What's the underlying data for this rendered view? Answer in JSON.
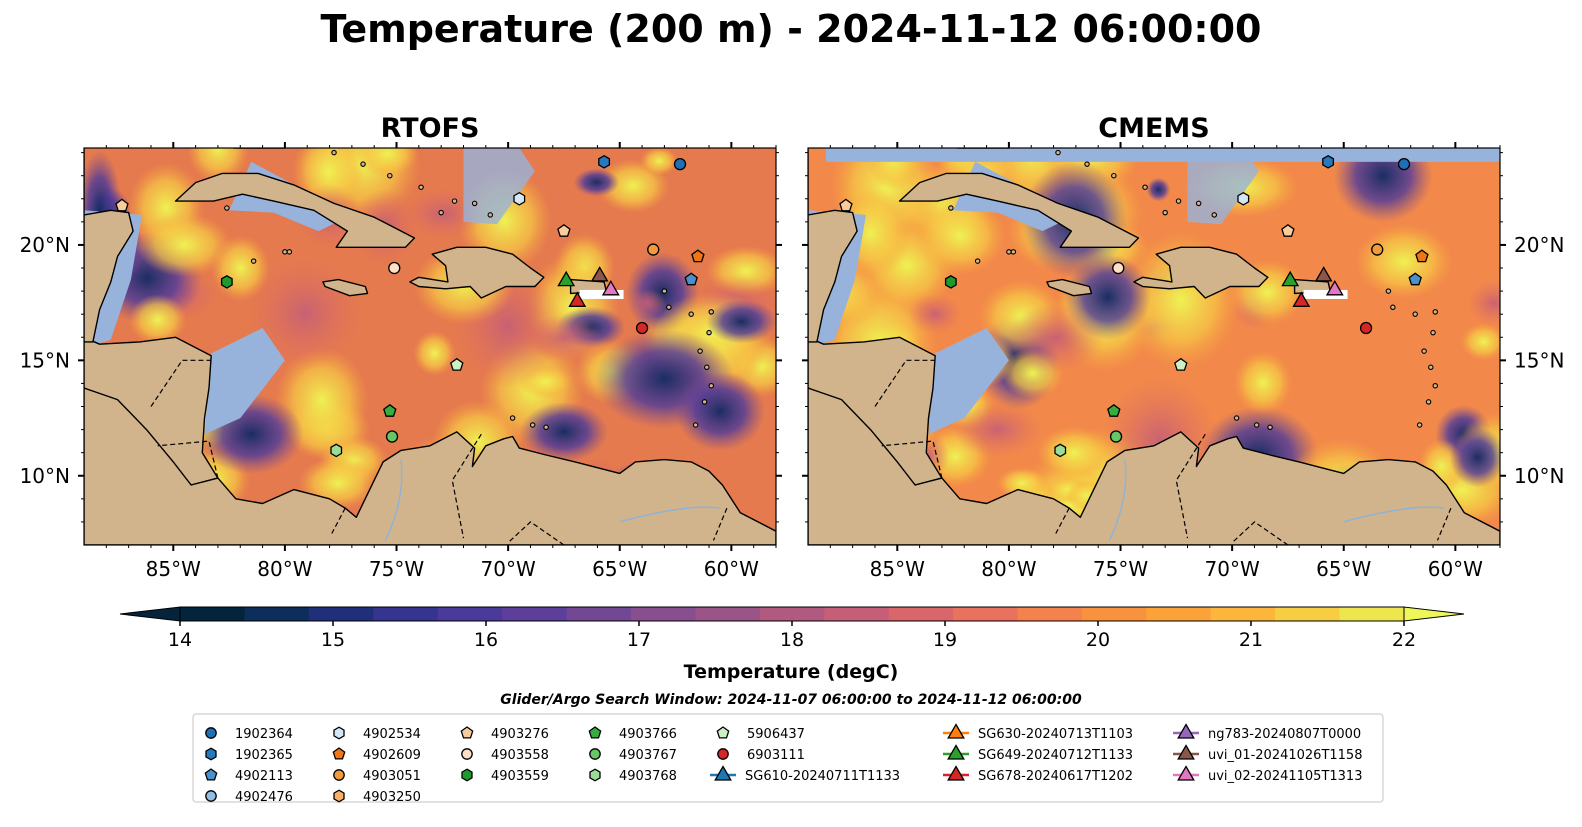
{
  "title": "Temperature (200 m) - 2024-11-12 06:00:00",
  "panels": [
    {
      "title": "RTOFS",
      "variant": "rtofs"
    },
    {
      "title": "CMEMS",
      "variant": "cmems"
    }
  ],
  "lon_ticks": [
    "85°W",
    "80°W",
    "75°W",
    "70°W",
    "65°W",
    "60°W"
  ],
  "lon_tick_values": [
    -85,
    -80,
    -75,
    -70,
    -65,
    -60
  ],
  "lat_ticks": [
    "20°N",
    "15°N",
    "10°N"
  ],
  "lat_tick_values": [
    20,
    15,
    10
  ],
  "map_extent": {
    "lon": [
      -89,
      -58
    ],
    "lat": [
      7,
      24.2
    ]
  },
  "colorbar": {
    "label": "Temperature (degC)",
    "ticks": [
      "14",
      "15",
      "16",
      "17",
      "18",
      "19",
      "20",
      "21",
      "22"
    ],
    "tick_values": [
      14,
      15,
      16,
      17,
      18,
      19,
      20,
      21,
      22
    ],
    "range": [
      14,
      22
    ],
    "colors": [
      "#03243a",
      "#0d2d5a",
      "#1f2f7a",
      "#35348f",
      "#4a3a9a",
      "#5c3f9a",
      "#724895",
      "#874f8e",
      "#9a5487",
      "#b05a80",
      "#c55f77",
      "#d8666b",
      "#e8725d",
      "#f3824c",
      "#f8923e",
      "#fba338",
      "#fbb63b",
      "#f7cd44",
      "#eee64e"
    ],
    "extend_low": "#03243a",
    "extend_high": "#eef75a"
  },
  "search_window": "Glider/Argo Search Window: 2024-11-07 06:00:00 to 2024-11-12 06:00:00",
  "land_color": "#d2b48c",
  "shelf_color": "#97b3dc",
  "legend": {
    "columns": [
      [
        {
          "label": "1902364",
          "marker": "circle",
          "color": "#1f6fb5"
        },
        {
          "label": "1902365",
          "marker": "hexagon",
          "color": "#2679bd"
        },
        {
          "label": "4902113",
          "marker": "pentagon",
          "color": "#4a90cc"
        },
        {
          "label": "4902476",
          "marker": "circle",
          "color": "#8fc1e3"
        }
      ],
      [
        {
          "label": "4902534",
          "marker": "hexagon",
          "color": "#d3e7f5"
        },
        {
          "label": "4902609",
          "marker": "pentagon",
          "color": "#f07514"
        },
        {
          "label": "4903051",
          "marker": "circle",
          "color": "#f39a3c"
        },
        {
          "label": "4903250",
          "marker": "hexagon",
          "color": "#f6b06a"
        }
      ],
      [
        {
          "label": "4903276",
          "marker": "pentagon",
          "color": "#f9cc9b"
        },
        {
          "label": "4903558",
          "marker": "circle",
          "color": "#fde0c5"
        },
        {
          "label": "4903559",
          "marker": "hexagon",
          "color": "#1f9a2c"
        }
      ],
      [
        {
          "label": "4903766",
          "marker": "pentagon",
          "color": "#36ae3f"
        },
        {
          "label": "4903767",
          "marker": "circle",
          "color": "#67c665"
        },
        {
          "label": "4903768",
          "marker": "hexagon",
          "color": "#9bdc96"
        }
      ],
      [
        {
          "label": "5906437",
          "marker": "pentagon",
          "color": "#ccf1c4"
        },
        {
          "label": "6903111",
          "marker": "circle",
          "color": "#d62728"
        },
        {
          "label": "SG610-20240711T1133",
          "marker": "glider",
          "color": "#1f77b4"
        }
      ],
      [
        {
          "label": "SG630-20240713T1103",
          "marker": "glider",
          "color": "#ff7f0e"
        },
        {
          "label": "SG649-20240712T1133",
          "marker": "glider",
          "color": "#2ca02c"
        },
        {
          "label": "SG678-20240617T1202",
          "marker": "glider",
          "color": "#d62728"
        }
      ],
      [
        {
          "label": "ng783-20240807T0000",
          "marker": "glider",
          "color": "#9467bd"
        },
        {
          "label": "uvi_01-20241026T1158",
          "marker": "glider",
          "color": "#8c564b"
        },
        {
          "label": "uvi_02-20241105T1313",
          "marker": "glider",
          "color": "#e377c2"
        }
      ]
    ]
  },
  "floats": [
    {
      "lon": -87.3,
      "lat": 21.7,
      "marker": "pentagon",
      "color": "#f9cc9b"
    },
    {
      "lon": -82.6,
      "lat": 18.4,
      "marker": "hexagon",
      "color": "#1f9a2c"
    },
    {
      "lon": -75.1,
      "lat": 19.0,
      "marker": "circle",
      "color": "#fde0c5"
    },
    {
      "lon": -69.5,
      "lat": 22.0,
      "marker": "hexagon",
      "color": "#d3e7f5"
    },
    {
      "lon": -67.5,
      "lat": 20.6,
      "marker": "pentagon",
      "color": "#f9cc9b"
    },
    {
      "lon": -65.7,
      "lat": 23.6,
      "marker": "hexagon",
      "color": "#2679bd"
    },
    {
      "lon": -62.3,
      "lat": 23.5,
      "marker": "circle",
      "color": "#1f6fb5"
    },
    {
      "lon": -63.5,
      "lat": 19.8,
      "marker": "circle",
      "color": "#f39a3c"
    },
    {
      "lon": -61.5,
      "lat": 19.5,
      "marker": "pentagon",
      "color": "#f07514"
    },
    {
      "lon": -61.8,
      "lat": 18.5,
      "marker": "pentagon",
      "color": "#4a90cc"
    },
    {
      "lon": -64.0,
      "lat": 16.4,
      "marker": "circle",
      "color": "#d62728"
    },
    {
      "lon": -72.3,
      "lat": 14.8,
      "marker": "pentagon",
      "color": "#ccf1c4"
    },
    {
      "lon": -75.3,
      "lat": 12.8,
      "marker": "pentagon",
      "color": "#36ae3f"
    },
    {
      "lon": -75.2,
      "lat": 11.7,
      "marker": "circle",
      "color": "#67c665"
    },
    {
      "lon": -77.7,
      "lat": 11.1,
      "marker": "hexagon",
      "color": "#9bdc96"
    }
  ],
  "gliders": [
    {
      "lon": -67.4,
      "lat": 18.5,
      "color": "#2ca02c"
    },
    {
      "lon": -66.9,
      "lat": 17.6,
      "color": "#d62728"
    },
    {
      "lon": -65.9,
      "lat": 18.7,
      "color": "#8c564b"
    },
    {
      "lon": -65.4,
      "lat": 18.1,
      "color": "#e377c2"
    }
  ]
}
